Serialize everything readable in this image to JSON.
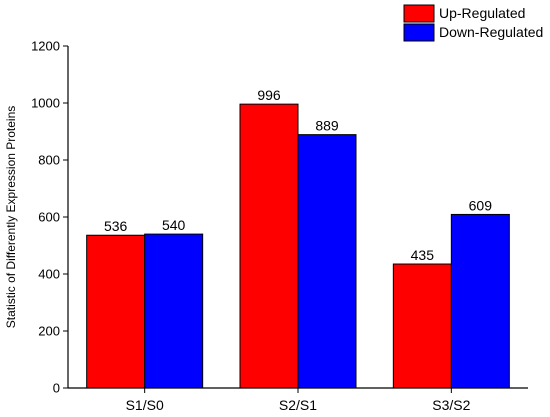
{
  "chart_data": {
    "type": "bar",
    "categories": [
      "S1/S0",
      "S2/S1",
      "S3/S2"
    ],
    "series": [
      {
        "name": "Up-Regulated",
        "values": [
          536,
          996,
          435
        ],
        "color": "#ff0000"
      },
      {
        "name": "Down-Regulated",
        "values": [
          540,
          889,
          609
        ],
        "color": "#0000ff"
      }
    ],
    "title": "",
    "xlabel": "",
    "ylabel": "Statistic of Differently Expression Proteins",
    "ylim": [
      0,
      1200
    ],
    "yticks": [
      0,
      200,
      400,
      600,
      800,
      1000,
      1200
    ],
    "grid": false,
    "legend_position": "top-right",
    "bar_outline_color": "#000000"
  }
}
